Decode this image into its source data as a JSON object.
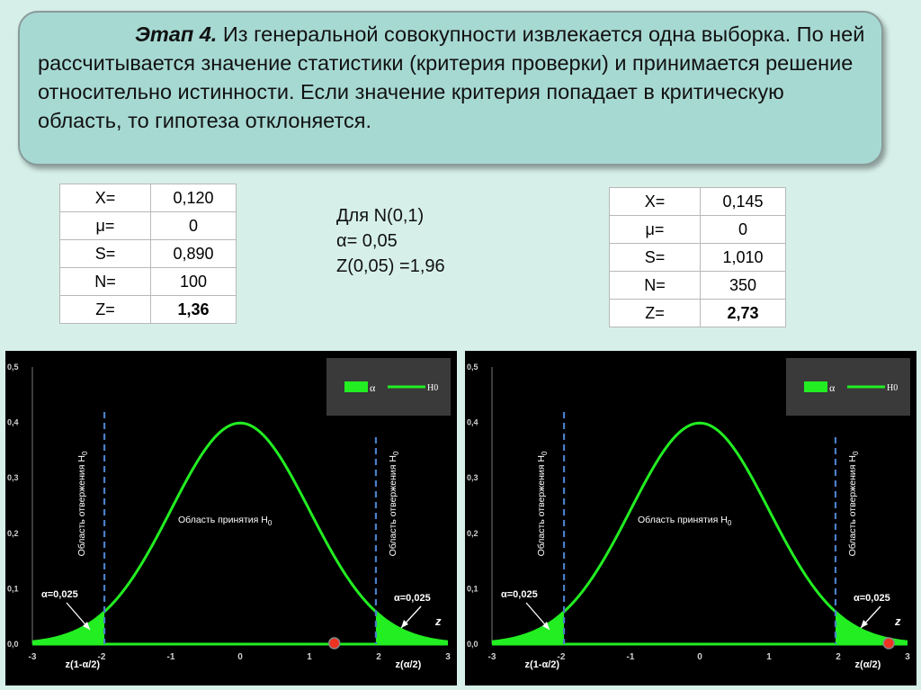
{
  "text_block": {
    "lead": "Этап 4.",
    "body": "Из генеральной совокупности извлекается одна выборка. По ней рассчитывается значение статистики (критерия проверки) и принимается решение относительно истинности. Если значение критерия попадает в критическую область, то гипотеза отклоняется."
  },
  "params": {
    "line1": "Для N(0,1)",
    "line2": "α= 0,05",
    "line3": "Z(0,05) =1,96"
  },
  "table_left": {
    "rows": [
      {
        "key": "X=",
        "value": "0,120"
      },
      {
        "key": "μ=",
        "value": "0"
      },
      {
        "key": "S=",
        "value": "0,890"
      },
      {
        "key": "N=",
        "value": "100"
      },
      {
        "key": "Z=",
        "value": "1,36"
      }
    ]
  },
  "table_right": {
    "rows": [
      {
        "key": "X=",
        "value": "0,145"
      },
      {
        "key": "μ=",
        "value": "0"
      },
      {
        "key": "S=",
        "value": "1,010"
      },
      {
        "key": "N=",
        "value": "350"
      },
      {
        "key": "Z=",
        "value": "2,73"
      }
    ]
  },
  "chart_data": [
    {
      "type": "area",
      "xlim": [
        -3,
        3
      ],
      "ylim": [
        0,
        0.5
      ],
      "x_ticks": [
        "-3",
        "-2",
        "-1",
        "0",
        "1",
        "2",
        "3"
      ],
      "y_ticks": [
        "0,0",
        "0,1",
        "0,2",
        "0,3",
        "0,4",
        "0,5"
      ],
      "critical_value": 1.96,
      "series": [
        {
          "name": "α",
          "kind": "shaded-tails",
          "color": "#22ee22"
        },
        {
          "name": "H0",
          "kind": "normal-density",
          "mean": 0,
          "sd": 1,
          "color": "#22ee22"
        }
      ],
      "legend": "top-right",
      "annotations": {
        "accept_region": "Область принятия H",
        "reject_left": "Область отвержения H",
        "reject_right": "Область отвержения H",
        "h_sub": "0",
        "alpha_left": "α=0,025",
        "alpha_right": "α=0,025",
        "z_lower": "z(1-α/2)",
        "z_upper": "z(α/2)",
        "z_axis": "z"
      },
      "marker": {
        "z": 1.36,
        "color": "#ee3322"
      }
    },
    {
      "type": "area",
      "xlim": [
        -3,
        3
      ],
      "ylim": [
        0,
        0.5
      ],
      "x_ticks": [
        "-3",
        "-2",
        "-1",
        "0",
        "1",
        "2",
        "3"
      ],
      "y_ticks": [
        "0,0",
        "0,1",
        "0,2",
        "0,3",
        "0,4",
        "0,5"
      ],
      "critical_value": 1.96,
      "series": [
        {
          "name": "α",
          "kind": "shaded-tails",
          "color": "#22ee22"
        },
        {
          "name": "H0",
          "kind": "normal-density",
          "mean": 0,
          "sd": 1,
          "color": "#22ee22"
        }
      ],
      "legend": "top-right",
      "annotations": {
        "accept_region": "Область принятия H",
        "reject_left": "Область отвержения H",
        "reject_right": "Область отвержения H",
        "h_sub": "0",
        "alpha_left": "α=0,025",
        "alpha_right": "α=0,025",
        "z_lower": "z(1-α/2)",
        "z_upper": "z(α/2)",
        "z_axis": "z"
      },
      "marker": {
        "z": 2.73,
        "color": "#ee3322"
      }
    }
  ]
}
